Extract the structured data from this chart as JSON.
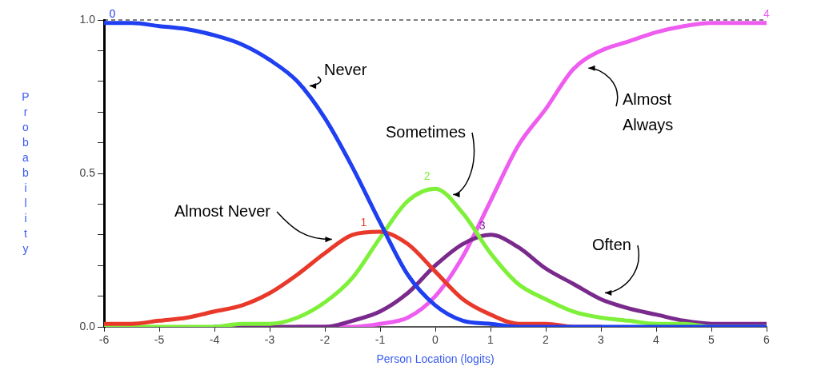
{
  "chart_data": {
    "type": "line",
    "xlabel": "Person Location (logits)",
    "ylabel": "Probability",
    "x": [
      -6,
      -5.5,
      -5,
      -4.5,
      -4,
      -3.5,
      -3,
      -2.5,
      -2,
      -1.5,
      -1,
      -0.5,
      0,
      0.5,
      1,
      1.5,
      2,
      2.5,
      3,
      3.5,
      4,
      4.5,
      5,
      5.5,
      6
    ],
    "series": [
      {
        "name": "Never",
        "color": "#1f3ff0",
        "values": [
          0.99,
          0.99,
          0.98,
          0.97,
          0.95,
          0.92,
          0.87,
          0.8,
          0.68,
          0.52,
          0.34,
          0.17,
          0.07,
          0.02,
          0.01,
          0,
          0,
          0,
          0,
          0,
          0,
          0,
          0,
          0,
          0
        ]
      },
      {
        "name": "Almost Never",
        "color": "#e8392a",
        "values": [
          0.01,
          0.01,
          0.02,
          0.03,
          0.05,
          0.07,
          0.11,
          0.17,
          0.24,
          0.3,
          0.31,
          0.27,
          0.18,
          0.09,
          0.04,
          0.01,
          0.01,
          0,
          0,
          null,
          null,
          null,
          null,
          null,
          null
        ]
      },
      {
        "name": "Sometimes",
        "color": "#7ff03a",
        "values": [
          0,
          0,
          0,
          0,
          0,
          0.01,
          0.01,
          0.03,
          0.08,
          0.16,
          0.29,
          0.41,
          0.45,
          0.37,
          0.24,
          0.14,
          0.09,
          0.05,
          0.03,
          0.02,
          0.01,
          0.01,
          0,
          0,
          0
        ]
      },
      {
        "name": "Often",
        "color": "#7a2a8c",
        "values": [
          null,
          null,
          null,
          null,
          0,
          0,
          0,
          0,
          0,
          0.02,
          0.05,
          0.11,
          0.2,
          0.27,
          0.3,
          0.26,
          0.19,
          0.14,
          0.09,
          0.06,
          0.04,
          0.02,
          0.01,
          0.01,
          0.01
        ]
      },
      {
        "name": "Almost Always",
        "color": "#ee5cf0",
        "values": [
          null,
          null,
          null,
          null,
          null,
          null,
          null,
          0,
          0,
          0,
          0.01,
          0.03,
          0.1,
          0.23,
          0.41,
          0.59,
          0.71,
          0.84,
          0.9,
          0.93,
          0.96,
          0.98,
          0.99,
          0.99,
          0.99
        ]
      }
    ],
    "xlim": [
      -6,
      6
    ],
    "xticks": [
      -6,
      -5,
      -4,
      -3,
      -2,
      -1,
      0,
      1,
      2,
      3,
      4,
      5,
      6
    ],
    "ylim": [
      0,
      1
    ],
    "yticks": [
      {
        "value": 0,
        "label": "0.0"
      },
      {
        "value": 0.1,
        "label": null
      },
      {
        "value": 0.2,
        "label": null
      },
      {
        "value": 0.3,
        "label": null
      },
      {
        "value": 0.4,
        "label": null
      },
      {
        "value": 0.5,
        "label": "0.5"
      },
      {
        "value": 0.6,
        "label": null
      },
      {
        "value": 0.7,
        "label": null
      },
      {
        "value": 0.8,
        "label": null
      },
      {
        "value": 0.9,
        "label": null
      },
      {
        "value": 1,
        "label": "1.0"
      }
    ],
    "ref_lines": [
      {
        "axis": "y",
        "value": 1,
        "color": "#000000",
        "line_style": "dashed"
      }
    ],
    "annotations": [
      {
        "text": "0",
        "x": -5.85,
        "y": 0.99
      },
      {
        "text": "1",
        "x": -1.3,
        "y": 0.31
      },
      {
        "text": "2",
        "x": -0.15,
        "y": 0.46
      },
      {
        "text": "3",
        "x": 0.85,
        "y": 0.3
      },
      {
        "text": "4",
        "x": 6,
        "y": 0.99
      }
    ],
    "grid": false,
    "legend": false,
    "marker": "none",
    "line_style": "solid"
  }
}
